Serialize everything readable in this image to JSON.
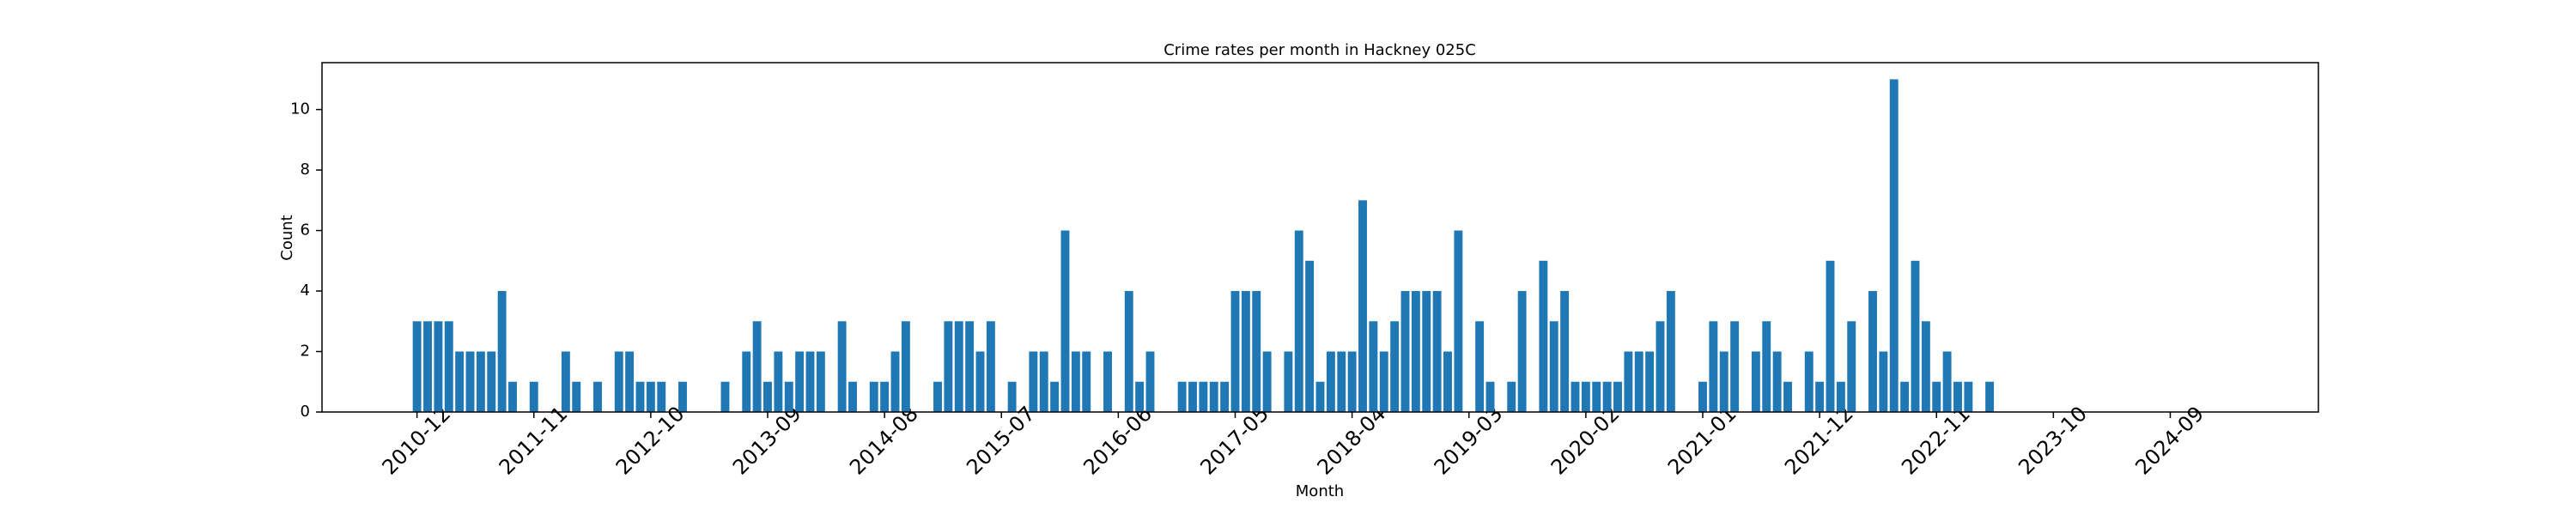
{
  "chart_data": {
    "type": "bar",
    "title": "Crime rates per month in Hackney 025C",
    "x_label": "Month",
    "y_label": "Count",
    "color": "#1f77b4",
    "categories": [
      "2010-12",
      null,
      null,
      null,
      null,
      null,
      null,
      null,
      null,
      null,
      null,
      "2011-11",
      null,
      null,
      null,
      null,
      null,
      null,
      null,
      null,
      null,
      null,
      "2012-10",
      null,
      null,
      null,
      null,
      null,
      null,
      null,
      null,
      null,
      null,
      "2013-09",
      null,
      null,
      null,
      null,
      null,
      null,
      null,
      null,
      null,
      null,
      "2014-08",
      null,
      null,
      null,
      null,
      null,
      null,
      null,
      null,
      null,
      null,
      "2015-07",
      null,
      null,
      null,
      null,
      null,
      null,
      null,
      null,
      null,
      null,
      "2016-06",
      null,
      null,
      null,
      null,
      null,
      null,
      null,
      null,
      null,
      null,
      "2017-05",
      null,
      null,
      null,
      null,
      null,
      null,
      null,
      null,
      null,
      null,
      "2018-04",
      null,
      null,
      null,
      null,
      null,
      null,
      null,
      null,
      null,
      null,
      "2019-03",
      null,
      null,
      null,
      null,
      null,
      null,
      null,
      null,
      null,
      null,
      "2020-02",
      null,
      null,
      null,
      null,
      null,
      null,
      null,
      null,
      null,
      null,
      "2021-01",
      null,
      null,
      null,
      null,
      null,
      null,
      null,
      null,
      null,
      null,
      "2021-12",
      null,
      null,
      null,
      null,
      null,
      null,
      null,
      null,
      null,
      null,
      "2022-11",
      null,
      null,
      null,
      null,
      null,
      null,
      null,
      null,
      null,
      null,
      "2023-10",
      null,
      null,
      null,
      null,
      null,
      null,
      null,
      null,
      null,
      null,
      "2024-09",
      null,
      null,
      null,
      null,
      null
    ],
    "values": [
      3,
      3,
      3,
      3,
      2,
      2,
      2,
      2,
      4,
      1,
      0,
      1,
      0,
      0,
      2,
      1,
      0,
      1,
      0,
      2,
      2,
      1,
      1,
      1,
      0,
      1,
      0,
      0,
      0,
      1,
      0,
      2,
      3,
      1,
      2,
      1,
      2,
      2,
      2,
      0,
      3,
      1,
      0,
      1,
      1,
      2,
      3,
      0,
      0,
      1,
      3,
      3,
      3,
      2,
      3,
      0,
      1,
      0,
      2,
      2,
      1,
      6,
      2,
      2,
      0,
      2,
      0,
      4,
      1,
      2,
      0,
      0,
      1,
      1,
      1,
      1,
      1,
      4,
      4,
      4,
      2,
      0,
      2,
      6,
      5,
      1,
      2,
      2,
      2,
      7,
      3,
      2,
      3,
      4,
      4,
      4,
      4,
      2,
      6,
      0,
      3,
      1,
      0,
      1,
      4,
      0,
      5,
      3,
      4,
      1,
      1,
      1,
      1,
      1,
      2,
      2,
      2,
      3,
      4,
      0,
      0,
      1,
      3,
      2,
      3,
      0,
      2,
      3,
      2,
      1,
      0,
      2,
      1,
      5,
      1,
      3,
      0,
      4,
      2,
      11,
      1,
      5,
      3,
      1,
      2,
      1,
      1,
      0,
      1,
      0,
      0,
      0,
      0,
      0,
      0,
      0,
      0,
      0,
      0,
      0,
      0,
      0,
      0,
      0,
      0,
      0,
      0,
      0,
      0,
      0,
      0
    ],
    "ylim": [
      0,
      11.55
    ],
    "yticks": [
      0,
      2,
      4,
      6,
      8,
      10
    ],
    "grid": false
  }
}
